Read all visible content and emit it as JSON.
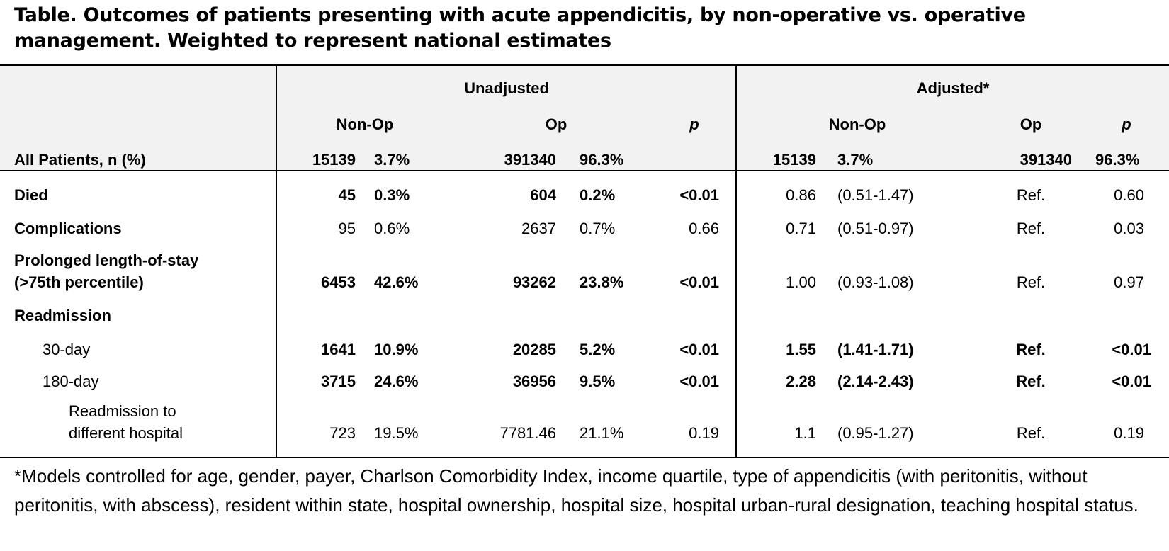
{
  "title": "Table. Outcomes of patients presenting with acute appendicitis, by non-operative vs. operative management. Weighted to represent national estimates",
  "header": {
    "unadjusted": "Unadjusted",
    "adjusted": "Adjusted*",
    "nonop": "Non-Op",
    "op": "Op",
    "p": "p",
    "all_label": "All Patients, n (%)",
    "all_values": {
      "u_nonop_n": "15139",
      "u_nonop_pct": "3.7%",
      "u_op_n": "391340",
      "u_op_pct": "96.3%",
      "a_nonop_n": "15139",
      "a_nonop_pct": "3.7%",
      "a_op_n": "391340",
      "a_op_pct": "96.3%"
    }
  },
  "rows": [
    {
      "label": "Died",
      "u_nonop_n": "45",
      "u_nonop_pct": "0.3%",
      "u_op_n": "604",
      "u_op_pct": "0.2%",
      "u_p": "<0.01",
      "a_or": "0.86",
      "a_ci": "(0.51-1.47)",
      "a_ref": "Ref.",
      "a_p": "0.60"
    },
    {
      "label": "Complications",
      "u_nonop_n": "95",
      "u_nonop_pct": "0.6%",
      "u_op_n": "2637",
      "u_op_pct": "0.7%",
      "u_p": "0.66",
      "a_or": "0.71",
      "a_ci": "(0.51-0.97)",
      "a_ref": "Ref.",
      "a_p": "0.03"
    },
    {
      "label": "Prolonged length-of-stay",
      "label2": "(>75th percentile)",
      "u_nonop_n": "6453",
      "u_nonop_pct": "42.6%",
      "u_op_n": "93262",
      "u_op_pct": "23.8%",
      "u_p": "<0.01",
      "a_or": "1.00",
      "a_ci": "(0.93-1.08)",
      "a_ref": "Ref.",
      "a_p": "0.97"
    },
    {
      "label": "Readmission"
    },
    {
      "label": "30-day",
      "u_nonop_n": "1641",
      "u_nonop_pct": "10.9%",
      "u_op_n": "20285",
      "u_op_pct": "5.2%",
      "u_p": "<0.01",
      "a_or": "1.55",
      "a_ci": "(1.41-1.71)",
      "a_ref": "Ref.",
      "a_p": "<0.01"
    },
    {
      "label": "180-day",
      "u_nonop_n": "3715",
      "u_nonop_pct": "24.6%",
      "u_op_n": "36956",
      "u_op_pct": "9.5%",
      "u_p": "<0.01",
      "a_or": "2.28",
      "a_ci": "(2.14-2.43)",
      "a_ref": "Ref.",
      "a_p": "<0.01"
    },
    {
      "label": "Readmission to",
      "label2": "different hospital",
      "u_nonop_n": "723",
      "u_nonop_pct": "19.5%",
      "u_op_n": "7781.46",
      "u_op_pct": "21.1%",
      "u_p": "0.19",
      "a_or": "1.1",
      "a_ci": "(0.95-1.27)",
      "a_ref": "Ref.",
      "a_p": "0.19"
    }
  ],
  "footnote": "*Models controlled for age, gender, payer, Charlson Comorbidity Index, income quartile, type of appendicitis (with peritonitis, without peritonitis, with abscess), resident within state, hospital ownership, hospital size, hospital urban-rural designation, teaching hospital status."
}
